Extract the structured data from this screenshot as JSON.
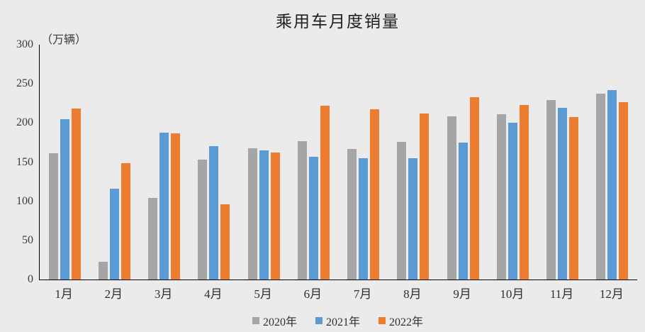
{
  "title": "乘用车月度销量",
  "unit_label": "（万辆）",
  "chart_data": {
    "type": "bar",
    "title": "乘用车月度销量",
    "ylabel": "（万辆）",
    "xlabel": "",
    "categories": [
      "1月",
      "2月",
      "3月",
      "4月",
      "5月",
      "6月",
      "7月",
      "8月",
      "9月",
      "10月",
      "11月",
      "12月"
    ],
    "series": [
      {
        "name": "2020年",
        "color": "#a5a5a5",
        "values": [
          161.4,
          22.4,
          104.5,
          153.6,
          167.4,
          176.4,
          166.5,
          175.5,
          208.8,
          211.1,
          229.7,
          237.5
        ]
      },
      {
        "name": "2021年",
        "color": "#5b9bd5",
        "values": [
          204.5,
          115.6,
          187.4,
          170.4,
          164.6,
          156.9,
          155.1,
          155.2,
          175.1,
          200.4,
          219.2,
          242.2
        ]
      },
      {
        "name": "2022年",
        "color": "#ed7d31",
        "values": [
          218.6,
          148.7,
          186.4,
          96.5,
          162.3,
          222.2,
          217.4,
          212.5,
          233.2,
          223.1,
          207.5,
          226.3
        ]
      }
    ],
    "ylim": [
      0,
      300
    ],
    "yticks": [
      0,
      50,
      100,
      150,
      200,
      250,
      300
    ],
    "grid": false,
    "legend_position": "bottom"
  }
}
